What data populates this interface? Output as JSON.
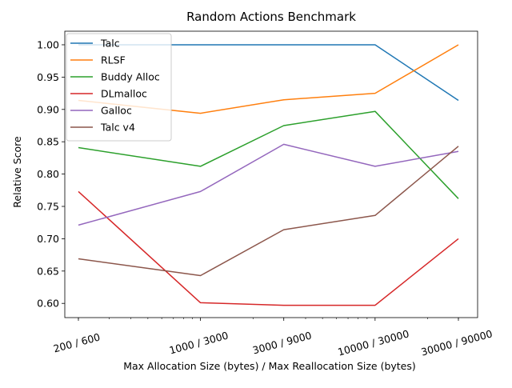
{
  "chart_data": {
    "type": "line",
    "title": "Random Actions Benchmark",
    "xlabel": "Max Allocation Size (bytes) / Max Reallocation Size (bytes)",
    "ylabel": "Relative Score",
    "x_scale": "log",
    "x": [
      200,
      1000,
      3000,
      10000,
      30000
    ],
    "categories": [
      "200 / 600",
      "1000 / 3000",
      "3000 / 9000",
      "10000 / 30000",
      "30000 / 90000"
    ],
    "ylim": [
      0.578,
      1.021
    ],
    "yticks": [
      "0.60",
      "0.65",
      "0.70",
      "0.75",
      "0.80",
      "0.85",
      "0.90",
      "0.95",
      "1.00"
    ],
    "grid": false,
    "legend_position": "top-left",
    "series": [
      {
        "name": "Talc",
        "color": "#1f77b4",
        "values": [
          1.0,
          1.0,
          1.0,
          1.0,
          0.914
        ]
      },
      {
        "name": "RLSF",
        "color": "#ff7f0e",
        "values": [
          0.914,
          0.894,
          0.915,
          0.925,
          1.0
        ]
      },
      {
        "name": "Buddy Alloc",
        "color": "#2ca02c",
        "values": [
          0.841,
          0.812,
          0.875,
          0.897,
          0.762
        ]
      },
      {
        "name": "DLmalloc",
        "color": "#d62728",
        "values": [
          0.773,
          0.601,
          0.597,
          0.597,
          0.7
        ]
      },
      {
        "name": "Galloc",
        "color": "#9467bd",
        "values": [
          0.721,
          0.773,
          0.846,
          0.812,
          0.835
        ]
      },
      {
        "name": "Talc v4",
        "color": "#8c564b",
        "values": [
          0.669,
          0.643,
          0.714,
          0.736,
          0.843
        ]
      }
    ]
  }
}
